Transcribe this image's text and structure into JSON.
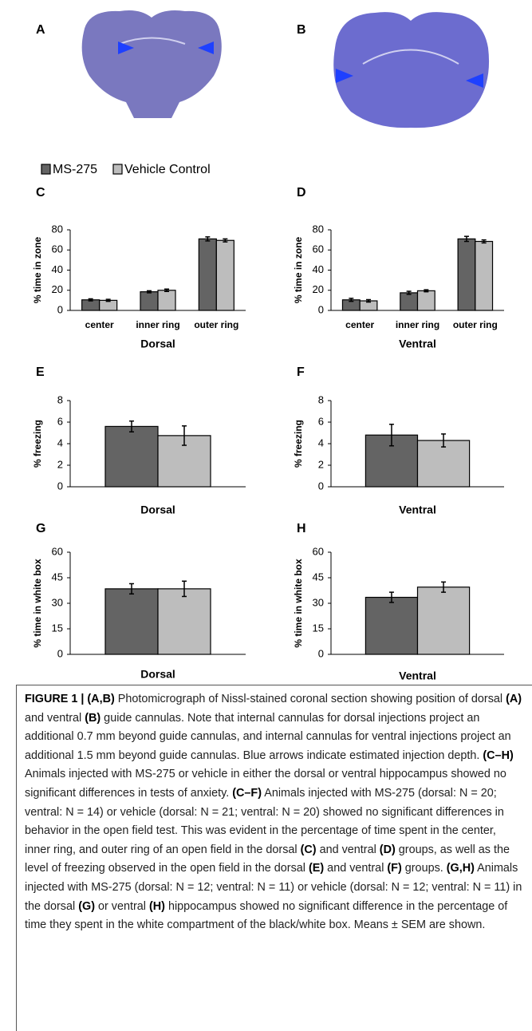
{
  "images": [
    {
      "label": "A"
    },
    {
      "label": "B"
    }
  ],
  "legend": [
    {
      "name": "MS-275",
      "color": "#646464"
    },
    {
      "name": "Vehicle Control",
      "color": "#bdbdbd"
    }
  ],
  "chart_data": [
    {
      "type": "bar",
      "label": "C",
      "ylabel": "% time in zone",
      "xlabel": "Dorsal",
      "categories": [
        "center",
        "inner ring",
        "outer ring"
      ],
      "series": [
        {
          "values": [
            10.5,
            18.5,
            71
          ],
          "errors": [
            1,
            1,
            2
          ]
        },
        {
          "values": [
            10,
            20,
            69.5
          ],
          "errors": [
            1,
            1.2,
            1.5
          ]
        }
      ],
      "ylim": [
        0,
        80
      ],
      "yticks": [
        0,
        20,
        40,
        60,
        80
      ]
    },
    {
      "type": "bar",
      "label": "D",
      "ylabel": "% time in zone",
      "xlabel": "Ventral",
      "categories": [
        "center",
        "inner ring",
        "outer ring"
      ],
      "series": [
        {
          "values": [
            10.5,
            17.5,
            71
          ],
          "errors": [
            1.5,
            1.5,
            2.5
          ]
        },
        {
          "values": [
            9.5,
            19.5,
            68.5
          ],
          "errors": [
            1.2,
            1,
            1.5
          ]
        }
      ],
      "ylim": [
        0,
        80
      ],
      "yticks": [
        0,
        20,
        40,
        60,
        80
      ]
    },
    {
      "type": "bar",
      "label": "E",
      "ylabel": "% freezing",
      "xlabel": "Dorsal",
      "series": [
        {
          "values": [
            5.6
          ],
          "errors": [
            0.5
          ]
        },
        {
          "values": [
            4.75
          ],
          "errors": [
            0.9
          ]
        }
      ],
      "ylim": [
        0,
        8
      ],
      "yticks": [
        0,
        2,
        4,
        6,
        8
      ]
    },
    {
      "type": "bar",
      "label": "F",
      "ylabel": "% freezing",
      "xlabel": "Ventral",
      "series": [
        {
          "values": [
            4.8
          ],
          "errors": [
            1
          ]
        },
        {
          "values": [
            4.3
          ],
          "errors": [
            0.6
          ]
        }
      ],
      "ylim": [
        0,
        8
      ],
      "yticks": [
        0,
        2,
        4,
        6,
        8
      ]
    },
    {
      "type": "bar",
      "label": "G",
      "ylabel": "% time in white box",
      "xlabel": "Dorsal",
      "series": [
        {
          "values": [
            38.5
          ],
          "errors": [
            3
          ]
        },
        {
          "values": [
            38.5
          ],
          "errors": [
            4.5
          ]
        }
      ],
      "ylim": [
        0,
        60
      ],
      "yticks": [
        0,
        15,
        30,
        45,
        60
      ]
    },
    {
      "type": "bar",
      "label": "H",
      "ylabel": "% time in white box",
      "xlabel": "Ventral",
      "series": [
        {
          "values": [
            33.5
          ],
          "errors": [
            3
          ]
        },
        {
          "values": [
            39.5
          ],
          "errors": [
            3
          ]
        }
      ],
      "ylim": [
        0,
        60
      ],
      "yticks": [
        0,
        15,
        30,
        45,
        60
      ]
    }
  ],
  "caption": [
    {
      "text": "FIGURE 1 | (A,B)",
      "bold": true
    },
    {
      "text": " Photomicrograph of Nissl-stained coronal section showing position of dorsal ",
      "bold": false
    },
    {
      "text": "(A)",
      "bold": true
    },
    {
      "text": " and ventral ",
      "bold": false
    },
    {
      "text": "(B)",
      "bold": true
    },
    {
      "text": " guide cannulas. Note that internal cannulas for dorsal injections project an additional 0.7 mm beyond guide cannulas, and internal cannulas for ventral injections project an additional 1.5 mm beyond guide cannulas. Blue arrows indicate estimated injection depth. ",
      "bold": false
    },
    {
      "text": "(C–H)",
      "bold": true
    },
    {
      "text": " Animals injected with MS-275 or vehicle in either the dorsal or ventral hippocampus showed no significant differences in tests of anxiety. ",
      "bold": false
    },
    {
      "text": "(C–F)",
      "bold": true
    },
    {
      "text": " Animals injected with MS-275 (dorsal: N = 20; ventral: N = 14) or vehicle (dorsal: N = 21; ventral: N = 20) showed no significant differences in behavior in the open field test. This was evident in the percentage of time spent in the center, inner ring, and outer ring of an open field in the dorsal ",
      "bold": false
    },
    {
      "text": "(C)",
      "bold": true
    },
    {
      "text": " and ventral ",
      "bold": false
    },
    {
      "text": "(D)",
      "bold": true
    },
    {
      "text": " groups, as well as the level of freezing observed in the open field in the dorsal ",
      "bold": false
    },
    {
      "text": "(E)",
      "bold": true
    },
    {
      "text": " and ventral ",
      "bold": false
    },
    {
      "text": "(F)",
      "bold": true
    },
    {
      "text": " groups. ",
      "bold": false
    },
    {
      "text": "(G,H)",
      "bold": true
    },
    {
      "text": " Animals injected with MS-275 (dorsal: N = 12; ventral: N = 11) or vehicle (dorsal: N = 12; ventral: N = 11) in the dorsal ",
      "bold": false
    },
    {
      "text": "(G)",
      "bold": true
    },
    {
      "text": " or ventral ",
      "bold": false
    },
    {
      "text": "(H)",
      "bold": true
    },
    {
      "text": " hippocampus showed no significant difference in the percentage of time they spent in the white compartment of the black/white box. Means ± SEM are shown.",
      "bold": false
    }
  ]
}
